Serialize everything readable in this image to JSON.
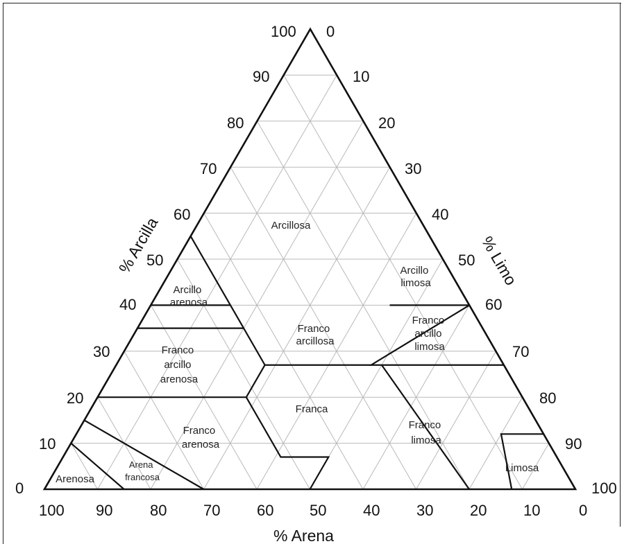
{
  "diagram": {
    "axes": {
      "clay": {
        "title": "% Arcilla",
        "ticks": [
          "0",
          "10",
          "20",
          "30",
          "40",
          "50",
          "60",
          "70",
          "80",
          "90",
          "100"
        ]
      },
      "silt": {
        "title": "% Limo",
        "ticks": [
          "0",
          "10",
          "20",
          "30",
          "40",
          "50",
          "60",
          "70",
          "80",
          "90",
          "100"
        ]
      },
      "sand": {
        "title": "% Arena",
        "ticks": [
          "100",
          "90",
          "80",
          "70",
          "60",
          "50",
          "40",
          "30",
          "20",
          "10",
          "0"
        ]
      }
    },
    "apex_labels": {
      "clay_top": "100",
      "silt_top": "0",
      "bottom_left": "0",
      "bottom_right": "100",
      "bottom_right_sand": "0"
    },
    "regions": [
      {
        "id": "arcillosa",
        "lines": [
          "Arcillosa"
        ]
      },
      {
        "id": "arcillo-limosa",
        "lines": [
          "Arcillo",
          "limosa"
        ]
      },
      {
        "id": "arcillo-arenosa",
        "lines": [
          "Arcillo",
          "arenosa"
        ]
      },
      {
        "id": "franco-arcillosa",
        "lines": [
          "Franco",
          "arcillosa"
        ]
      },
      {
        "id": "franco-arcillo-limosa",
        "lines": [
          "Franco",
          "arcillo",
          "limosa"
        ]
      },
      {
        "id": "franco-arcillo-arenosa",
        "lines": [
          "Franco",
          "arcillo",
          "arenosa"
        ]
      },
      {
        "id": "franca",
        "lines": [
          "Franca"
        ]
      },
      {
        "id": "franco-limosa",
        "lines": [
          "Franco",
          "limosa"
        ]
      },
      {
        "id": "franco-arenosa",
        "lines": [
          "Franco",
          "arenosa"
        ]
      },
      {
        "id": "arena-francosa",
        "lines": [
          "Arena",
          "francosa"
        ]
      },
      {
        "id": "arenosa",
        "lines": [
          "Arenosa"
        ]
      },
      {
        "id": "limosa",
        "lines": [
          "Limosa"
        ]
      }
    ],
    "boundaries_percent": [
      {
        "id": "clay-outer",
        "points": [
          [
            45,
            55,
            0
          ],
          [
            60,
            40,
            0
          ],
          [
            40,
            60,
            0
          ],
          [
            40,
            45,
            15
          ]
        ]
      },
      {
        "id": "clay-sandy-clay",
        "points": [
          [
            55,
            0,
            45
          ],
          [
            35,
            20,
            45
          ]
        ]
      },
      {
        "id": "sandy-clay-silty",
        "points": [
          [
            40,
            15,
            45
          ],
          [
            40,
            0,
            60
          ]
        ]
      },
      {
        "id": "silty-clay-loam",
        "points": [
          [
            40,
            60,
            0
          ],
          [
            27,
            48,
            25
          ],
          [
            27,
            73,
            0
          ]
        ]
      },
      {
        "id": "clay-loam-bottom",
        "points": [
          [
            27,
            28,
            45
          ],
          [
            27,
            48,
            25
          ]
        ]
      },
      {
        "id": "scl-top",
        "points": [
          [
            35,
            0,
            65
          ],
          [
            35,
            20,
            45
          ],
          [
            27,
            28,
            45
          ]
        ]
      },
      {
        "id": "scl-bottom",
        "points": [
          [
            20,
            0,
            80
          ],
          [
            20,
            28,
            52
          ]
        ]
      },
      {
        "id": "loam",
        "points": [
          [
            27,
            28,
            45
          ],
          [
            20,
            28,
            52
          ],
          [
            7,
            41,
            52
          ],
          [
            7,
            50,
            43
          ],
          [
            0,
            50,
            50
          ]
        ]
      },
      {
        "id": "silt-loam",
        "points": [
          [
            27,
            50,
            23
          ],
          [
            0,
            80,
            20
          ]
        ]
      },
      {
        "id": "silt",
        "points": [
          [
            0,
            88,
            12
          ],
          [
            12,
            80,
            8
          ],
          [
            12,
            88,
            0
          ]
        ]
      },
      {
        "id": "loamy-sand",
        "points": [
          [
            15,
            0,
            85
          ],
          [
            0,
            30,
            70
          ]
        ]
      },
      {
        "id": "sand",
        "points": [
          [
            10,
            0,
            90
          ],
          [
            0,
            15,
            85
          ]
        ]
      }
    ]
  }
}
